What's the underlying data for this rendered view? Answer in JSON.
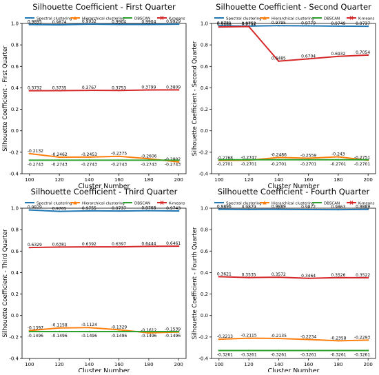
{
  "chart_data": [
    {
      "type": "line",
      "title": "Silhouette Coefficient - First Quarter",
      "xlabel": "Cluster Number",
      "ylabel": "Silhouette Coefficient - First Quarter",
      "x": [
        100,
        120,
        140,
        160,
        180,
        200
      ],
      "xticks": [
        "100",
        "120",
        "140",
        "160",
        "180",
        "200"
      ],
      "ylim": [
        -0.4,
        1.0
      ],
      "yticks": [
        "1.0",
        "0.8",
        "0.6",
        "0.4",
        "0.2",
        "0.0",
        "-0.2",
        "-0.4"
      ],
      "legend": "top",
      "series": [
        {
          "name": "Spectral clustering",
          "color": "#1f77b4",
          "values": [
            0.9895,
            0.9874,
            0.9932,
            0.9904,
            0.9904,
            0.9929
          ],
          "labels": [
            "0.9895",
            "0.9874",
            "0.9932",
            "0.9904",
            "0.9904",
            "0.9929"
          ]
        },
        {
          "name": "Hierarchical clustering",
          "color": "#ff7f0e",
          "values": [
            -0.2132,
            -0.2462,
            -0.2453,
            -0.2375,
            -0.2606,
            -0.2902
          ],
          "labels": [
            "-0.2132",
            "-0.2462",
            "-0.2453",
            "-0.2375",
            "-0.2606",
            "-0.2902"
          ]
        },
        {
          "name": "DBSCAN",
          "color": "#2ca02c",
          "values": [
            -0.2743,
            -0.2743,
            -0.2743,
            -0.2743,
            -0.2743,
            -0.2743
          ],
          "labels": [
            "-0.2743",
            "-0.2743",
            "-0.2743",
            "-0.2743",
            "-0.2743",
            "-0.2743"
          ]
        },
        {
          "name": "K-means",
          "color": "#d62728",
          "values": [
            0.3732,
            0.3735,
            0.3767,
            0.3753,
            0.3799,
            0.3809
          ],
          "labels": [
            "0.3732",
            "0.3735",
            "0.3767",
            "0.3753",
            "0.3799",
            "0.3809"
          ]
        }
      ]
    },
    {
      "type": "line",
      "title": "Silhouette Coefficient - Second Quarter",
      "xlabel": "Cluster Number",
      "ylabel": "Silhouette Coefficient - Second Quarter",
      "x": [
        100,
        120,
        140,
        160,
        180,
        200
      ],
      "xticks": [
        "100",
        "120",
        "140",
        "160",
        "180",
        "200"
      ],
      "ylim": [
        -0.4,
        1.0
      ],
      "yticks": [
        "1.0",
        "0.8",
        "0.6",
        "0.4",
        "0.2",
        "0.0",
        "-0.2",
        "-0.4"
      ],
      "legend": "top",
      "series": [
        {
          "name": "Spectral clustering",
          "color": "#1f77b4",
          "values": [
            0.9781,
            0.9752,
            0.9795,
            0.9779,
            0.9749,
            0.9737
          ],
          "labels": [
            "0.9781",
            "0.9752",
            "0.9795",
            "0.9779",
            "0.9749",
            "0.9737"
          ]
        },
        {
          "name": "Hierarchical clustering",
          "color": "#ff7f0e",
          "values": [
            -0.2768,
            -0.2747,
            -0.2486,
            -0.2559,
            -0.243,
            -0.2751
          ],
          "labels": [
            "-0.2768",
            "-0.2747",
            "-0.2486",
            "-0.2559",
            "-0.243",
            "-0.2751"
          ]
        },
        {
          "name": "DBSCAN",
          "color": "#2ca02c",
          "values": [
            -0.2701,
            -0.2701,
            -0.2701,
            -0.2701,
            -0.2701,
            -0.2701
          ],
          "labels": [
            "-0.2701",
            "-0.2701",
            "-0.2701",
            "-0.2701",
            "-0.2701",
            "-0.2701"
          ]
        },
        {
          "name": "K-means",
          "color": "#d62728",
          "values": [
            0.9668,
            0.9712,
            0.6485,
            0.6704,
            0.6932,
            0.7054
          ],
          "labels": [
            "0.9668",
            "0.9712",
            "0.6485",
            "0.6704",
            "0.6932",
            "0.7054"
          ]
        }
      ]
    },
    {
      "type": "line",
      "title": "Silhouette Coefficient - Third Quarter",
      "xlabel": "Cluster Number",
      "ylabel": "Silhouette Coefficient - Third Quarter",
      "x": [
        100,
        120,
        140,
        160,
        180,
        200
      ],
      "xticks": [
        "100",
        "120",
        "140",
        "160",
        "180",
        "200"
      ],
      "ylim": [
        -0.4,
        1.0
      ],
      "yticks": [
        "1.0",
        "0.8",
        "0.6",
        "0.4",
        "0.2",
        "0.0",
        "-0.2",
        "-0.4"
      ],
      "legend": "top",
      "series": [
        {
          "name": "Spectral clustering",
          "color": "#1f77b4",
          "values": [
            0.9829,
            0.9705,
            0.9755,
            0.9737,
            0.9768,
            0.9743
          ],
          "labels": [
            "0.9829",
            "0.9705",
            "0.9755",
            "0.9737",
            "0.9768",
            "0.9743"
          ]
        },
        {
          "name": "Hierarchical clustering",
          "color": "#ff7f0e",
          "values": [
            -0.1397,
            -0.1158,
            -0.1124,
            -0.1329,
            -0.1612,
            -0.1539
          ],
          "labels": [
            "-0.1397",
            "-0.1158",
            "-0.1124",
            "-0.1329",
            "-0.1612",
            "-0.1539"
          ]
        },
        {
          "name": "DBSCAN",
          "color": "#2ca02c",
          "values": [
            -0.1496,
            -0.1496,
            -0.1496,
            -0.1496,
            -0.1496,
            -0.1496
          ],
          "labels": [
            "-0.1496",
            "-0.1496",
            "-0.1496",
            "-0.1496",
            "-0.1496",
            "-0.1496"
          ]
        },
        {
          "name": "K-means",
          "color": "#d62728",
          "values": [
            0.6329,
            0.6381,
            0.6392,
            0.6397,
            0.6444,
            0.6461
          ],
          "labels": [
            "0.6329",
            "0.6381",
            "0.6392",
            "0.6397",
            "0.6444",
            "0.6461"
          ]
        }
      ]
    },
    {
      "type": "line",
      "title": "Silhouette Coefficient - Fourth Quarter",
      "xlabel": "Cluster Number",
      "ylabel": "Silhouette Coefficient - Fourth Quarter",
      "x": [
        100,
        120,
        140,
        160,
        180,
        200
      ],
      "xticks": [
        "100",
        "120",
        "140",
        "160",
        "180",
        "200"
      ],
      "ylim": [
        -0.4,
        1.0
      ],
      "yticks": [
        "1.0",
        "0.8",
        "0.6",
        "0.4",
        "0.2",
        "0.0",
        "-0.2",
        "-0.4"
      ],
      "legend": "top",
      "series": [
        {
          "name": "Spectral clustering",
          "color": "#1f77b4",
          "values": [
            0.9896,
            0.9879,
            0.9889,
            0.9872,
            0.9863,
            0.9889
          ],
          "labels": [
            "0.9896",
            "0.9879",
            "0.9889",
            "0.9872",
            "0.9863",
            "0.9889"
          ]
        },
        {
          "name": "Hierarchical clustering",
          "color": "#ff7f0e",
          "values": [
            -0.2213,
            -0.2115,
            -0.2135,
            -0.2234,
            -0.2358,
            -0.2293
          ],
          "labels": [
            "-0.2213",
            "-0.2115",
            "-0.2135",
            "-0.2234",
            "-0.2358",
            "-0.2293"
          ]
        },
        {
          "name": "DBSCAN",
          "color": "#2ca02c",
          "values": [
            -0.3261,
            -0.3261,
            -0.3261,
            -0.3261,
            -0.3261,
            -0.3261
          ],
          "labels": [
            "-0.3261",
            "-0.3261",
            "-0.3261",
            "-0.3261",
            "-0.3261",
            "-0.3261"
          ]
        },
        {
          "name": "K-means",
          "color": "#d62728",
          "values": [
            0.3621,
            0.3535,
            0.3572,
            0.3464,
            0.3526,
            0.3522
          ],
          "labels": [
            "0.3621",
            "0.3535",
            "0.3572",
            "0.3464",
            "0.3526",
            "0.3522"
          ]
        }
      ]
    }
  ]
}
